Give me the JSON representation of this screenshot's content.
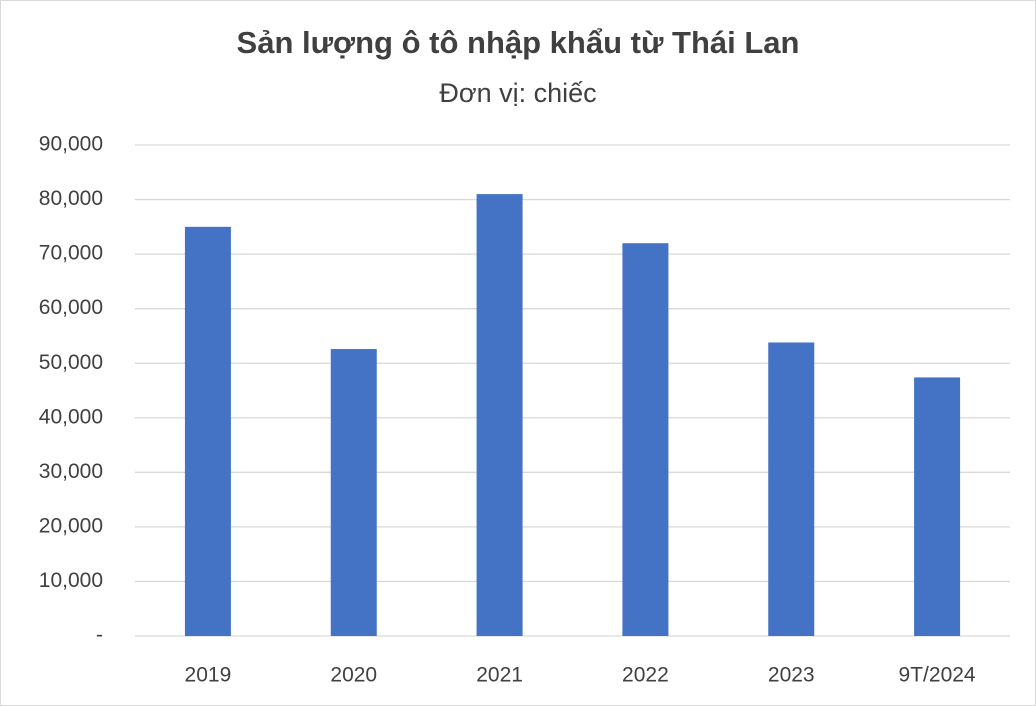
{
  "chart_data": {
    "type": "bar",
    "title": "Sản lượng ô tô nhập khẩu từ Thái Lan",
    "subtitle": "Đơn vị: chiếc",
    "categories": [
      "2019",
      "2020",
      "2021",
      "2022",
      "2023",
      "9T/2024"
    ],
    "values": [
      75000,
      52600,
      81000,
      72000,
      53800,
      47400
    ],
    "color": "#4472c4",
    "ylim": [
      0,
      90000
    ],
    "yticks": [
      {
        "value": 0,
        "label": "-"
      },
      {
        "value": 10000,
        "label": "10,000"
      },
      {
        "value": 20000,
        "label": "20,000"
      },
      {
        "value": 30000,
        "label": "30,000"
      },
      {
        "value": 40000,
        "label": "40,000"
      },
      {
        "value": 50000,
        "label": "50,000"
      },
      {
        "value": 60000,
        "label": "60,000"
      },
      {
        "value": 70000,
        "label": "70,000"
      },
      {
        "value": 80000,
        "label": "80,000"
      },
      {
        "value": 90000,
        "label": "90,000"
      }
    ],
    "grid": true
  }
}
